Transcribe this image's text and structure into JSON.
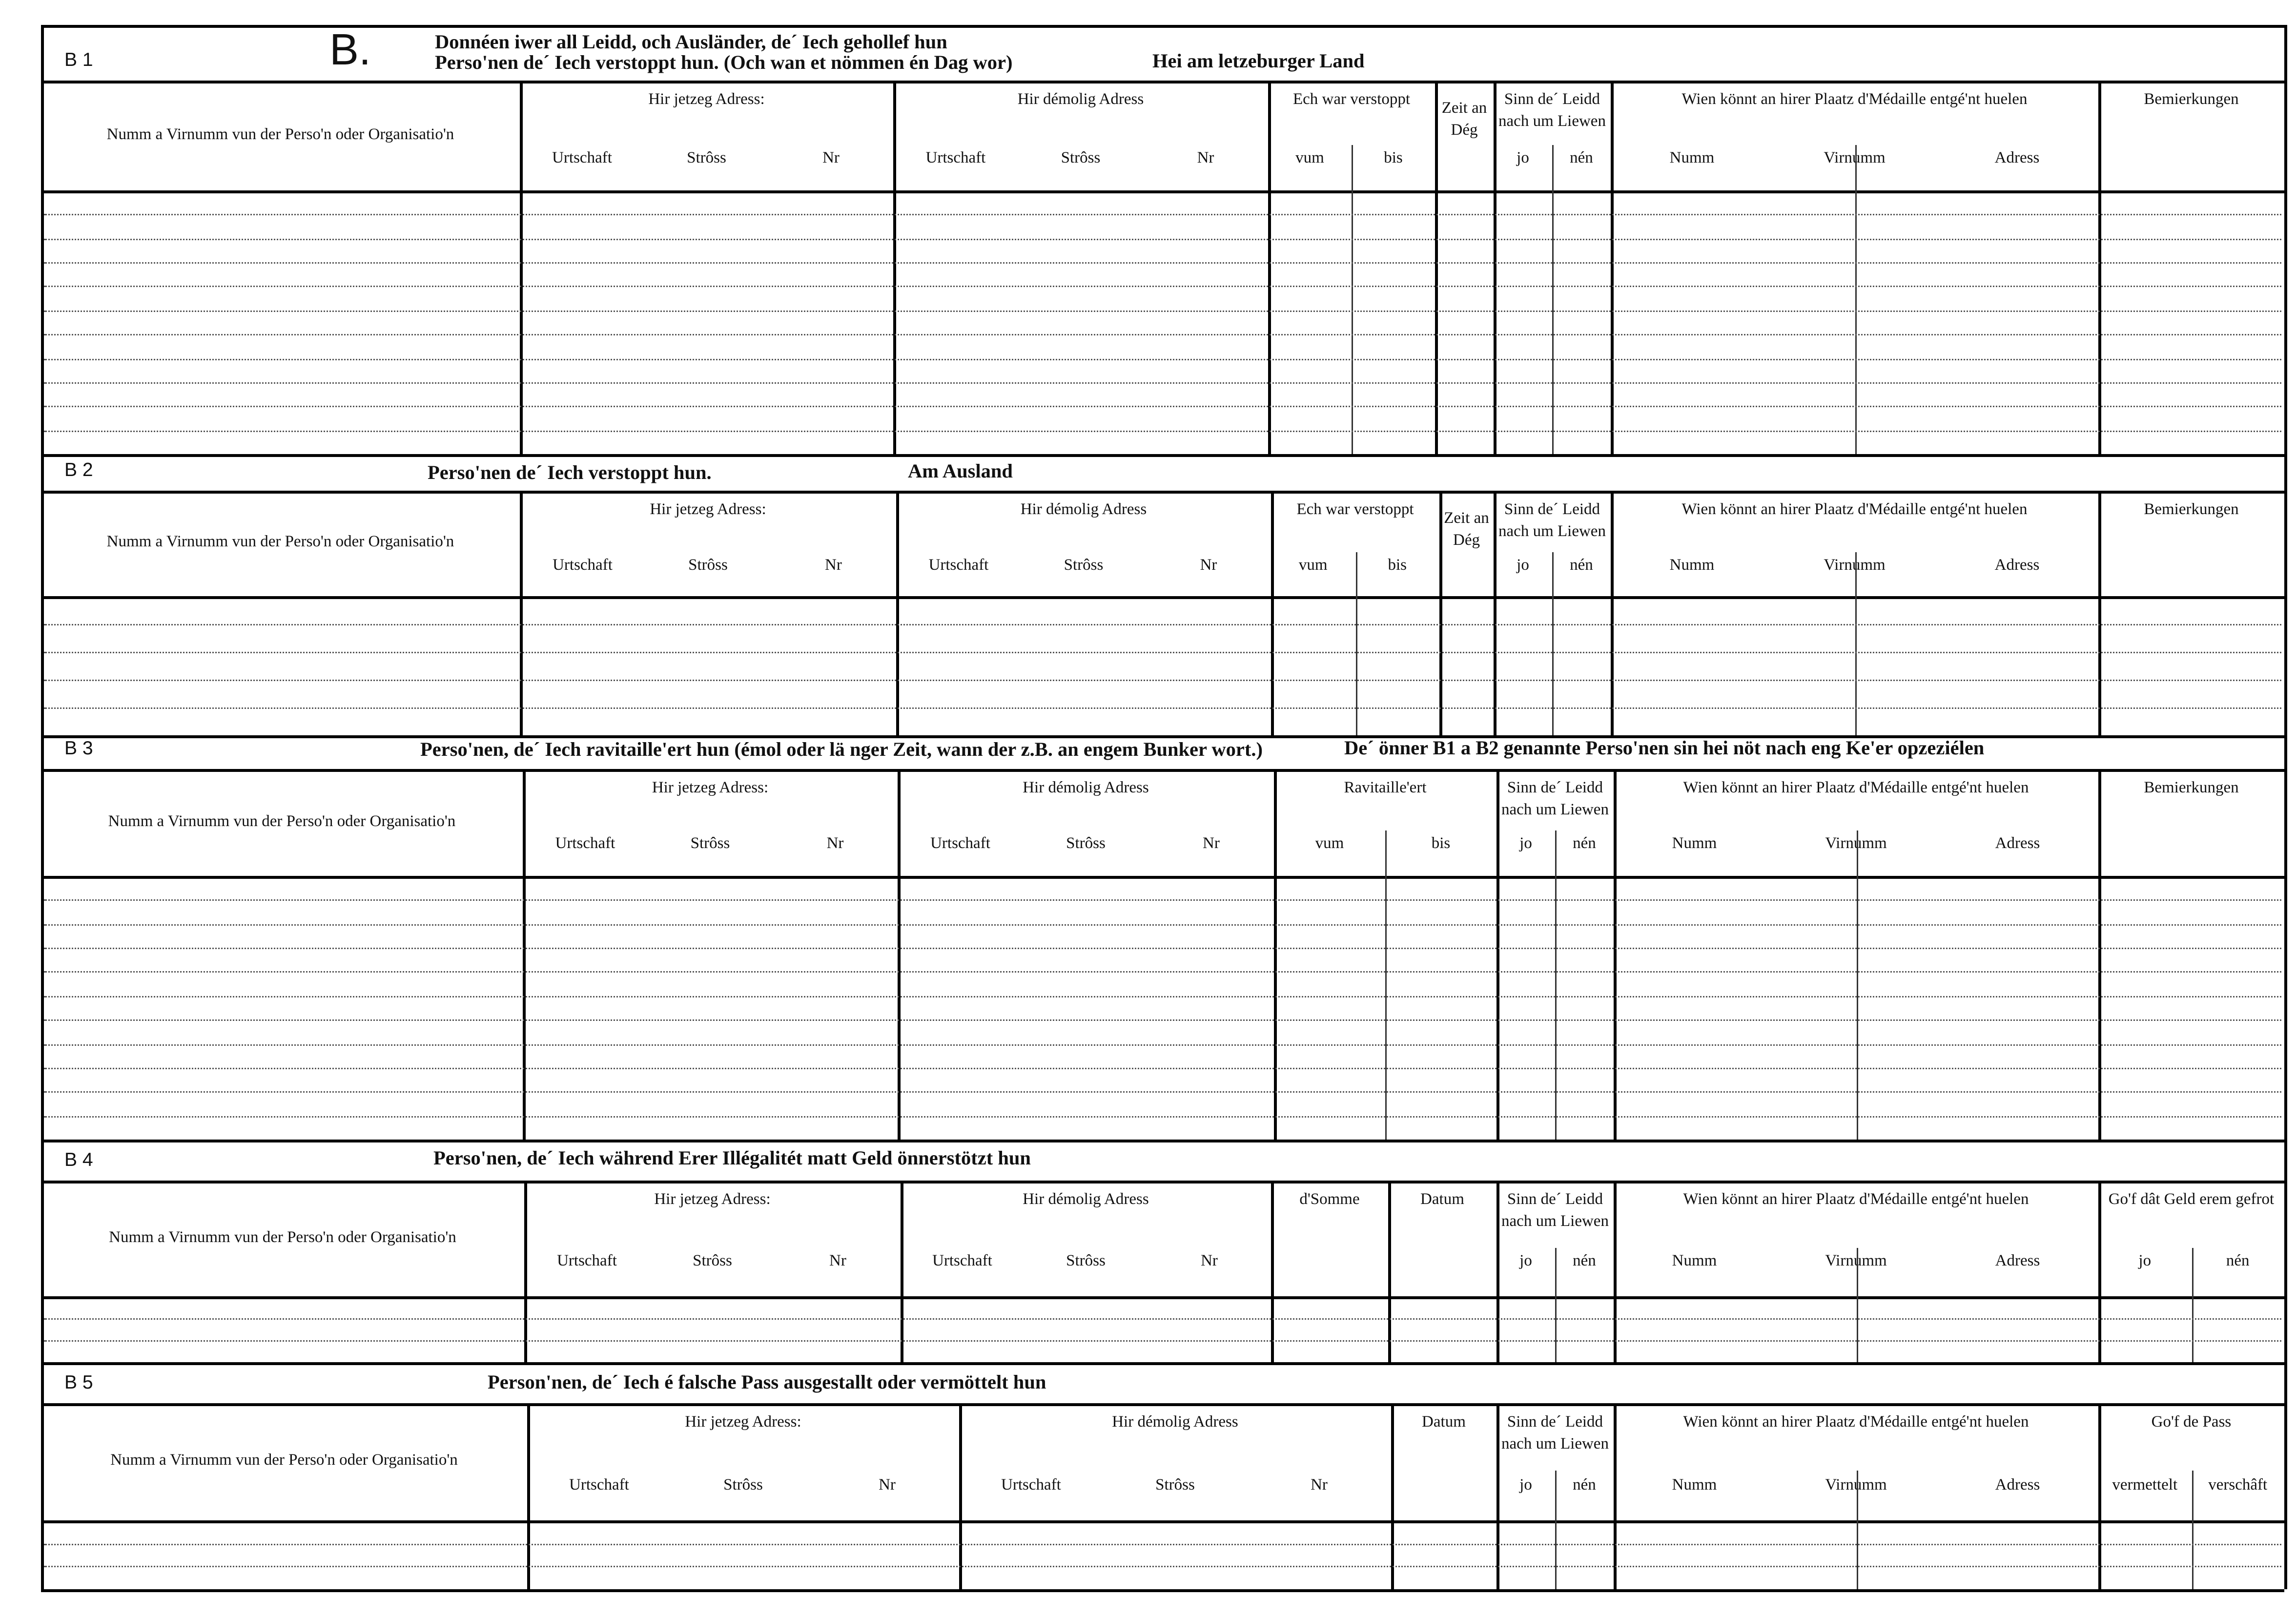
{
  "form": {
    "letter": "B."
  },
  "sections": [
    {
      "code": "B 1",
      "title": [
        "Donnéen iwer all Leidd, och Ausländer, de´ Iech gehollef hun",
        "Perso'nen de´ Iech verstoppt hun. (Och wan et nömmen én Dag wor)"
      ],
      "subtitle": "Hei am letzeburger Land",
      "columns": [
        {
          "label": "Numm a Virnumm vun der Perso'n oder Organisatio'n"
        },
        {
          "label": "Hir jetzeg Adress:",
          "sub": [
            "Urtschaft",
            "Strôss",
            "Nr"
          ]
        },
        {
          "label": "Hir démolig Adress",
          "sub": [
            "Urtschaft",
            "Strôss",
            "Nr"
          ]
        },
        {
          "label": "Ech war verstoppt",
          "sub": [
            "vum",
            "bis"
          ]
        },
        {
          "label": "Zeit an Dég"
        },
        {
          "label": "Sinn de´ Leidd nach um Liewen",
          "sub": [
            "jo",
            "nén"
          ]
        },
        {
          "label": "Wien könnt an hirer Plaatz d'Médaille entgé'nt huelen",
          "sub": [
            "Numm",
            "Virnumm",
            "Adress"
          ]
        },
        {
          "label": "Bemierkungen"
        }
      ]
    },
    {
      "code": "B 2",
      "title": [
        "Perso'nen de´ Iech verstoppt hun."
      ],
      "subtitle": "Am Ausland",
      "columns": [
        {
          "label": "Numm a Virnumm vun der Perso'n oder Organisatio'n"
        },
        {
          "label": "Hir jetzeg Adress:",
          "sub": [
            "Urtschaft",
            "Strôss",
            "Nr"
          ]
        },
        {
          "label": "Hir démolig Adress",
          "sub": [
            "Urtschaft",
            "Strôss",
            "Nr"
          ]
        },
        {
          "label": "Ech war verstoppt",
          "sub": [
            "vum",
            "bis"
          ]
        },
        {
          "label": "Zeit an Dég"
        },
        {
          "label": "Sinn de´ Leidd nach um Liewen",
          "sub": [
            "jo",
            "nén"
          ]
        },
        {
          "label": "Wien könnt an hirer Plaatz d'Médaille entgé'nt huelen",
          "sub": [
            "Numm",
            "Virnumm",
            "Adress"
          ]
        },
        {
          "label": "Bemierkungen"
        }
      ]
    },
    {
      "code": "B 3",
      "title": [
        "Perso'nen, de´ Iech ravitaille'ert hun (émol oder lä nger Zeit, wann der z.B. an engem Bunker wort.)"
      ],
      "subtitle": "De´ önner B1 a B2 genannte Perso'nen sin hei nöt nach eng Ke'er opzeziélen",
      "columns": [
        {
          "label": "Numm a Virnumm vun der Perso'n oder Organisatio'n"
        },
        {
          "label": "Hir jetzeg Adress:",
          "sub": [
            "Urtschaft",
            "Strôss",
            "Nr"
          ]
        },
        {
          "label": "Hir démolig Adress",
          "sub": [
            "Urtschaft",
            "Strôss",
            "Nr"
          ]
        },
        {
          "label": "Ravitaille'ert",
          "sub": [
            "vum",
            "bis"
          ]
        },
        {
          "label": "Sinn de´ Leidd nach um Liewen",
          "sub": [
            "jo",
            "nén"
          ]
        },
        {
          "label": "Wien könnt an hirer Plaatz d'Médaille entgé'nt huelen",
          "sub": [
            "Numm",
            "Virnumm",
            "Adress"
          ]
        },
        {
          "label": "Bemierkungen"
        }
      ]
    },
    {
      "code": "B 4",
      "title": [
        "Perso'nen, de´ Iech während Erer Illégalitét matt Geld önnerstötzt hun"
      ],
      "subtitle": "",
      "columns": [
        {
          "label": "Numm a Virnumm vun der Perso'n oder Organisatio'n"
        },
        {
          "label": "Hir jetzeg Adress:",
          "sub": [
            "Urtschaft",
            "Strôss",
            "Nr"
          ]
        },
        {
          "label": "Hir démolig Adress",
          "sub": [
            "Urtschaft",
            "Strôss",
            "Nr"
          ]
        },
        {
          "label": "d'Somme"
        },
        {
          "label": "Datum"
        },
        {
          "label": "Sinn de´ Leidd nach um Liewen",
          "sub": [
            "jo",
            "nén"
          ]
        },
        {
          "label": "Wien könnt an hirer Plaatz d'Médaille entgé'nt huelen",
          "sub": [
            "Numm",
            "Virnumm",
            "Adress"
          ]
        },
        {
          "label": "Go'f dât Geld erem gefrot",
          "sub": [
            "jo",
            "nén"
          ]
        }
      ]
    },
    {
      "code": "B 5",
      "title": [
        "Person'nen, de´ Iech é falsche Pass ausgestallt oder vermöttelt hun"
      ],
      "subtitle": "",
      "columns": [
        {
          "label": "Numm a Virnumm vun der Perso'n oder Organisatio'n"
        },
        {
          "label": "Hir jetzeg Adress:",
          "sub": [
            "Urtschaft",
            "Strôss",
            "Nr"
          ]
        },
        {
          "label": "Hir démolig Adress",
          "sub": [
            "Urtschaft",
            "Strôss",
            "Nr"
          ]
        },
        {
          "label": "Datum"
        },
        {
          "label": "Sinn de´ Leidd nach um Liewen",
          "sub": [
            "jo",
            "nén"
          ]
        },
        {
          "label": "Wien könnt an hirer Plaatz d'Médaille entgé'nt huelen",
          "sub": [
            "Numm",
            "Virnumm",
            "Adress"
          ]
        },
        {
          "label": "Go'f de Pass",
          "sub": [
            "vermettelt",
            "verschâft"
          ]
        }
      ]
    }
  ]
}
